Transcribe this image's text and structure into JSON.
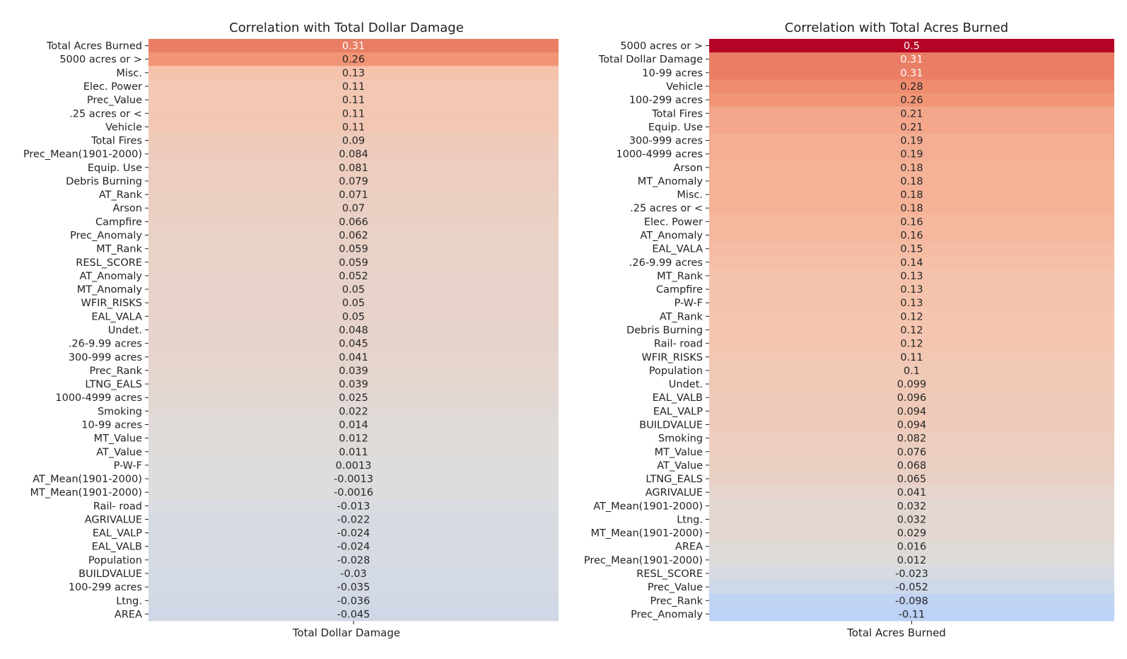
{
  "chart_data": [
    {
      "type": "heatmap",
      "title": "Correlation with Total Dollar Damage",
      "xlabel": "Total Dollar Damage",
      "column": "Total Dollar Damage",
      "colormap": "coolwarm",
      "vlim": [
        -0.5,
        0.5
      ],
      "rows": [
        "Total Acres Burned",
        "5000 acres or >",
        "Misc.",
        "Elec. Power",
        "Prec_Value",
        ".25 acres or <",
        "Vehicle",
        "Total Fires",
        "Prec_Mean(1901-2000)",
        "Equip. Use",
        "Debris Burning",
        "AT_Rank",
        "Arson",
        "Campfire",
        "Prec_Anomaly",
        "MT_Rank",
        "RESL_SCORE",
        "AT_Anomaly",
        "MT_Anomaly",
        "WFIR_RISKS",
        "EAL_VALA",
        "Undet.",
        ".26-9.99 acres",
        "300-999 acres",
        "Prec_Rank",
        "LTNG_EALS",
        "1000-4999 acres",
        "Smoking",
        "10-99 acres",
        "MT_Value",
        "AT_Value",
        "P-W-F",
        "AT_Mean(1901-2000)",
        "MT_Mean(1901-2000)",
        "Rail- road",
        "AGRIVALUE",
        "EAL_VALP",
        "EAL_VALB",
        "Population",
        "BUILDVALUE",
        "100-299 acres",
        "Ltng.",
        "AREA"
      ],
      "values": [
        0.31,
        0.26,
        0.13,
        0.11,
        0.11,
        0.11,
        0.11,
        0.09,
        0.084,
        0.081,
        0.079,
        0.071,
        0.07,
        0.066,
        0.062,
        0.059,
        0.059,
        0.052,
        0.05,
        0.05,
        0.05,
        0.048,
        0.045,
        0.041,
        0.039,
        0.039,
        0.025,
        0.022,
        0.014,
        0.012,
        0.011,
        0.0013,
        -0.0013,
        -0.0016,
        -0.013,
        -0.022,
        -0.024,
        -0.024,
        -0.028,
        -0.03,
        -0.035,
        -0.036,
        -0.045
      ]
    },
    {
      "type": "heatmap",
      "title": "Correlation with Total Acres Burned",
      "xlabel": "Total Acres Burned",
      "column": "Total Acres Burned",
      "colormap": "coolwarm",
      "vlim": [
        -0.5,
        0.5
      ],
      "rows": [
        "5000 acres or >",
        "Total Dollar Damage",
        "10-99 acres",
        "Vehicle",
        "100-299 acres",
        "Total Fires",
        "Equip. Use",
        "300-999 acres",
        "1000-4999 acres",
        "Arson",
        "MT_Anomaly",
        "Misc.",
        ".25 acres or <",
        "Elec. Power",
        "AT_Anomaly",
        "EAL_VALA",
        ".26-9.99 acres",
        "MT_Rank",
        "Campfire",
        "P-W-F",
        "AT_Rank",
        "Debris Burning",
        "Rail- road",
        "WFIR_RISKS",
        "Population",
        "Undet.",
        "EAL_VALB",
        "EAL_VALP",
        "BUILDVALUE",
        "Smoking",
        "MT_Value",
        "AT_Value",
        "LTNG_EALS",
        "AGRIVALUE",
        "AT_Mean(1901-2000)",
        "Ltng.",
        "MT_Mean(1901-2000)",
        "AREA",
        "Prec_Mean(1901-2000)",
        "RESL_SCORE",
        "Prec_Value",
        "Prec_Rank",
        "Prec_Anomaly"
      ],
      "values": [
        0.5,
        0.31,
        0.31,
        0.28,
        0.26,
        0.21,
        0.21,
        0.19,
        0.19,
        0.18,
        0.18,
        0.18,
        0.18,
        0.16,
        0.16,
        0.15,
        0.14,
        0.13,
        0.13,
        0.13,
        0.12,
        0.12,
        0.12,
        0.11,
        0.1,
        0.099,
        0.096,
        0.094,
        0.094,
        0.082,
        0.076,
        0.068,
        0.065,
        0.041,
        0.032,
        0.032,
        0.029,
        0.016,
        0.012,
        -0.023,
        -0.052,
        -0.098,
        -0.11
      ]
    }
  ]
}
